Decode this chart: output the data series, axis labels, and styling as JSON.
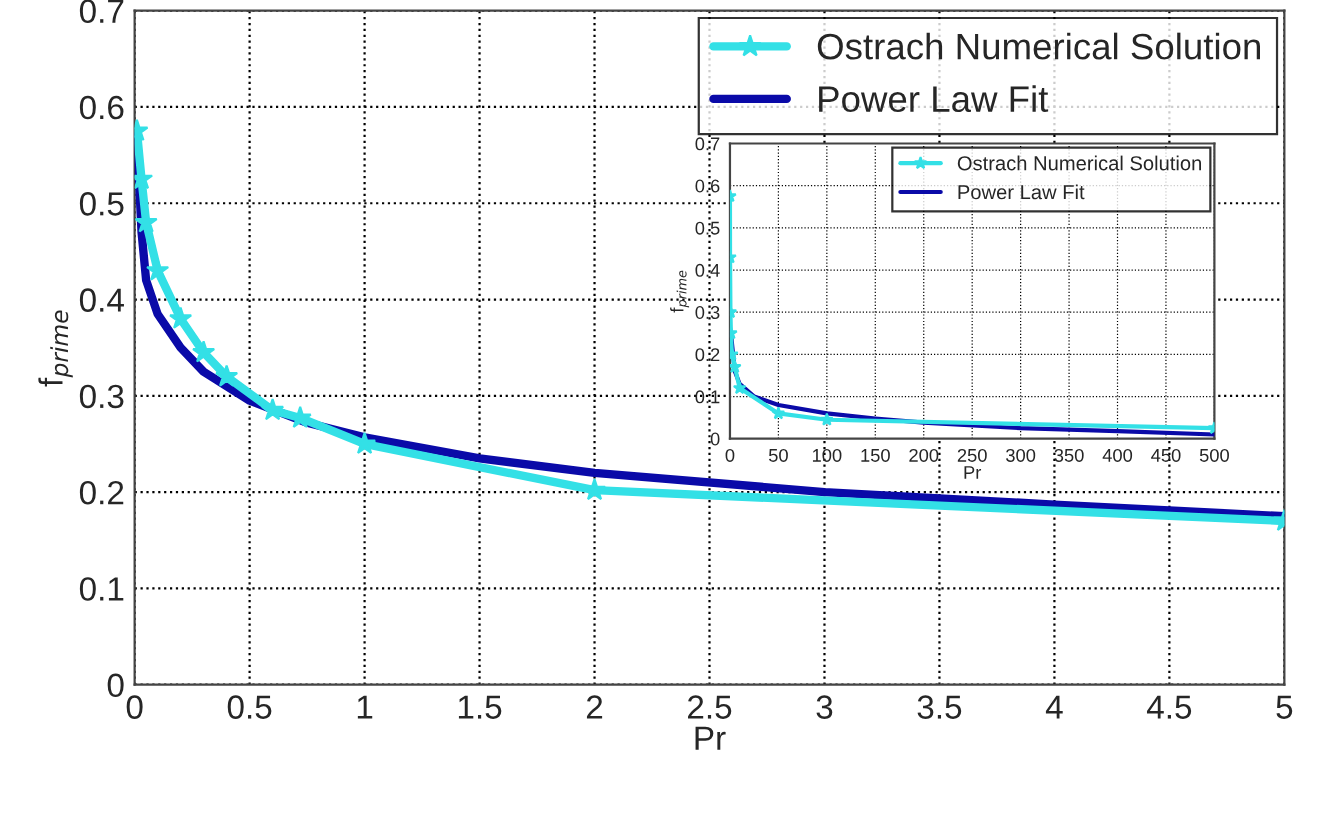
{
  "chart_data": [
    {
      "type": "line",
      "xlabel": "Pr",
      "ylabel": "f$_{prime}$",
      "xlim": [
        0,
        5
      ],
      "ylim": [
        0,
        0.7
      ],
      "xticks": [
        0,
        0.5,
        1,
        1.5,
        2,
        2.5,
        3,
        3.5,
        4,
        4.5,
        5
      ],
      "yticks": [
        0,
        0.1,
        0.2,
        0.3,
        0.4,
        0.5,
        0.6,
        0.7
      ],
      "grid": true,
      "legend": "top right",
      "line_style": "solid",
      "series": [
        {
          "name": "Ostrach Numerical Solution",
          "color": "#33e0e6",
          "marker": "star",
          "x": [
            0.01,
            0.03,
            0.05,
            0.1,
            0.2,
            0.3,
            0.4,
            0.6,
            0.72,
            1,
            2,
            5
          ],
          "values": [
            0.575,
            0.525,
            0.48,
            0.43,
            0.38,
            0.345,
            0.32,
            0.285,
            0.277,
            0.25,
            0.202,
            0.17
          ]
        },
        {
          "name": "Power Law Fit",
          "color": "#0a0aa8",
          "marker": "none",
          "x": [
            0.01,
            0.03,
            0.05,
            0.1,
            0.2,
            0.3,
            0.5,
            0.75,
            1,
            1.5,
            2,
            3,
            4,
            5
          ],
          "values": [
            0.57,
            0.47,
            0.42,
            0.385,
            0.35,
            0.325,
            0.295,
            0.272,
            0.257,
            0.235,
            0.22,
            0.2,
            0.187,
            0.175
          ]
        }
      ]
    },
    {
      "type": "line",
      "xlabel": "Pr",
      "ylabel": "f$_{prime}$",
      "xlim": [
        0,
        500
      ],
      "ylim": [
        0,
        0.7
      ],
      "xticks": [
        0,
        50,
        100,
        150,
        200,
        250,
        300,
        350,
        400,
        450,
        500
      ],
      "yticks": [
        0,
        0.1,
        0.2,
        0.3,
        0.4,
        0.5,
        0.6,
        0.7
      ],
      "grid": true,
      "legend": "top right",
      "line_style": "solid",
      "series": [
        {
          "name": "Ostrach Numerical Solution",
          "color": "#33e0e6",
          "marker": "star",
          "x": [
            0.01,
            0.1,
            0.5,
            1,
            2,
            5,
            10,
            50,
            100,
            500
          ],
          "values": [
            0.575,
            0.43,
            0.3,
            0.25,
            0.2,
            0.17,
            0.12,
            0.06,
            0.045,
            0.025
          ]
        },
        {
          "name": "Power Law Fit",
          "color": "#0a0aa8",
          "marker": "none",
          "x": [
            1,
            5,
            10,
            25,
            50,
            100,
            150,
            200,
            300,
            400,
            500
          ],
          "values": [
            0.25,
            0.16,
            0.13,
            0.1,
            0.08,
            0.06,
            0.048,
            0.038,
            0.025,
            0.018,
            0.01
          ]
        }
      ]
    }
  ]
}
